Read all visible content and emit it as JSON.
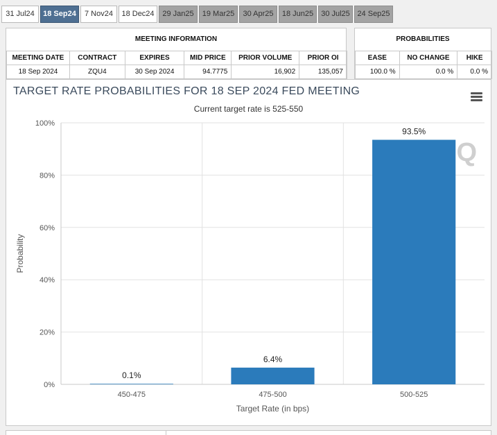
{
  "tabs": [
    {
      "label": "31 Jul24",
      "state": "normal"
    },
    {
      "label": "18 Sep24",
      "state": "active"
    },
    {
      "label": "7 Nov24",
      "state": "normal"
    },
    {
      "label": "18 Dec24",
      "state": "normal"
    },
    {
      "label": "29 Jan25",
      "state": "future"
    },
    {
      "label": "19 Mar25",
      "state": "future"
    },
    {
      "label": "30 Apr25",
      "state": "future"
    },
    {
      "label": "18 Jun25",
      "state": "future"
    },
    {
      "label": "30 Jul25",
      "state": "future"
    },
    {
      "label": "24 Sep25",
      "state": "future"
    }
  ],
  "meeting_info": {
    "title": "MEETING INFORMATION",
    "headers": {
      "meeting_date": "MEETING DATE",
      "contract": "CONTRACT",
      "expires": "EXPIRES",
      "mid_price": "MID PRICE",
      "prior_volume": "PRIOR VOLUME",
      "prior_oi": "PRIOR OI"
    },
    "values": {
      "meeting_date": "18 Sep 2024",
      "contract": "ZQU4",
      "expires": "30 Sep 2024",
      "mid_price": "94.7775",
      "prior_volume": "16,902",
      "prior_oi": "135,057"
    }
  },
  "probabilities": {
    "title": "PROBABILITIES",
    "headers": {
      "ease": "EASE",
      "no_change": "NO CHANGE",
      "hike": "HIKE"
    },
    "values": {
      "ease": "100.0 %",
      "no_change": "0.0 %",
      "hike": "0.0 %"
    }
  },
  "chart_menu_icon": "hamburger-menu-icon",
  "watermark_text": "Q",
  "colors": {
    "bar": "#2b7bbb",
    "active_tab": "#4e6f92",
    "future_tab": "#a3a3a3",
    "title": "#3a4a5c"
  },
  "chart_data": {
    "type": "bar",
    "title": "TARGET RATE PROBABILITIES FOR 18 SEP 2024 FED MEETING",
    "subtitle": "Current target rate is 525-550",
    "xlabel": "Target Rate (in bps)",
    "ylabel": "Probability",
    "categories": [
      "450-475",
      "475-500",
      "500-525"
    ],
    "values": [
      0.1,
      6.4,
      93.5
    ],
    "data_labels": [
      "0.1%",
      "6.4%",
      "93.5%"
    ],
    "ylim": [
      0,
      100
    ],
    "yticks": [
      0,
      20,
      40,
      60,
      80,
      100
    ],
    "ytick_labels": [
      "0%",
      "20%",
      "40%",
      "60%",
      "80%",
      "100%"
    ],
    "grid": true,
    "legend": "none"
  }
}
